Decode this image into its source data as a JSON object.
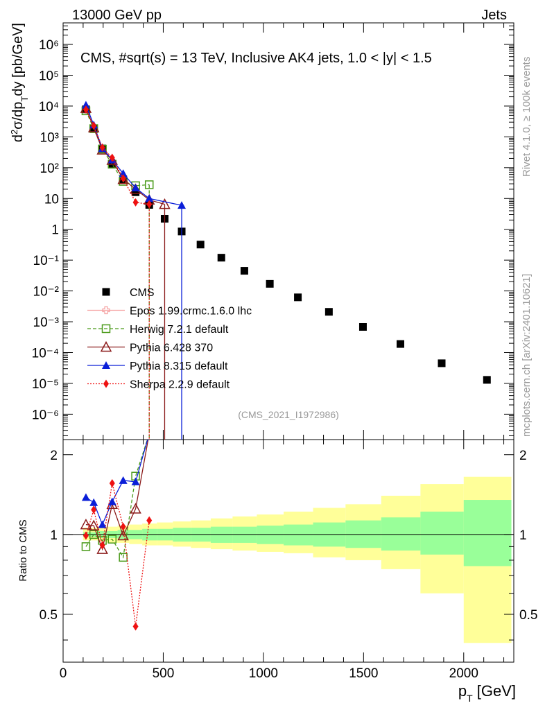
{
  "header": {
    "left": "13000 GeV pp",
    "right": "Jets"
  },
  "side_labels": {
    "rivet": "Rivet 4.1.0, ≥ 100k events",
    "mcplots": "mcplots.cern.ch [arXiv:2401.10621]"
  },
  "chart_data": [
    {
      "type": "scatter",
      "title": "CMS, #sqrt(s) = 13 TeV, Inclusive AK4 jets, 1.0 < |y| < 1.5",
      "analysis_id": "(CMS_2021_I1972986)",
      "ylabel": "d²σ/dp_T dy [pb/GeV]",
      "yscale": "log",
      "xlim": [
        0,
        2250
      ],
      "ylim": [
        1.5e-07,
        5000000.0
      ],
      "y_tick_labels": [
        "10⁻⁶",
        "10⁻⁵",
        "10⁻⁴",
        "10⁻³",
        "10⁻²",
        "10⁻¹",
        "1",
        "10",
        "10²",
        "10³",
        "10⁴",
        "10⁵",
        "10⁶"
      ],
      "y_tick_values": [
        1e-06,
        1e-05,
        0.0001,
        0.001,
        0.01,
        0.1,
        1,
        10,
        100,
        1000,
        10000.0,
        100000.0,
        1000000.0
      ],
      "legend_position": "bottom-left",
      "series": [
        {
          "name": "CMS",
          "color": "#000000",
          "marker": "square",
          "x": [
            114,
            153,
            196,
            245,
            300,
            362,
            430,
            507,
            592,
            686,
            790,
            905,
            1032,
            1172,
            1327,
            1497,
            1684,
            1890,
            2116
          ],
          "y": [
            7800,
            1850,
            420,
            135,
            42,
            16,
            6.2,
            2.2,
            0.85,
            0.32,
            0.12,
            0.045,
            0.017,
            0.0062,
            0.0021,
            0.00068,
            0.00019,
            4.5e-05,
            1.3e-05
          ]
        },
        {
          "name": "Epos 1.99.crmc.1.6.0 lhc",
          "color": "#f5a0a0",
          "marker": "cross-open",
          "x": [],
          "y": []
        },
        {
          "name": "Herwig 7.2.1 default",
          "color": "#4a9a1a",
          "marker": "square-open",
          "x": [
            114,
            153,
            196,
            245,
            300,
            362,
            430
          ],
          "y": [
            7000,
            1850,
            400,
            130,
            36,
            26,
            28
          ]
        },
        {
          "name": "Pythia 6.428 370",
          "color": "#8b1a1a",
          "marker": "triangle-open",
          "x": [
            114,
            153,
            196,
            245,
            300,
            362,
            430,
            507
          ],
          "y": [
            8500,
            2000,
            380,
            175,
            42,
            20,
            9,
            6.5
          ]
        },
        {
          "name": "Pythia 8.315 default",
          "color": "#0a1ed8",
          "marker": "triangle",
          "x": [
            114,
            153,
            196,
            245,
            300,
            362,
            430,
            592
          ],
          "y": [
            10800,
            2450,
            420,
            180,
            65,
            22,
            10,
            6
          ]
        },
        {
          "name": "Sherpa 2.2.9 default",
          "color": "#ee1111",
          "marker": "diamond",
          "x": [
            114,
            153,
            196,
            245,
            300,
            362,
            430
          ],
          "y": [
            7700,
            2300,
            450,
            210,
            45,
            7.5,
            6.5
          ]
        }
      ]
    },
    {
      "type": "line",
      "ylabel": "Ratio to CMS",
      "xlabel": "p_T [GeV]",
      "xlim": [
        0,
        2250
      ],
      "ylim": [
        0.33,
        2.28
      ],
      "x_tick_labels": [
        "0",
        "500",
        "1000",
        "1500",
        "2000"
      ],
      "x_tick_values": [
        0,
        500,
        1000,
        1500,
        2000
      ],
      "y_tick_labels": [
        "0.5",
        "1",
        "2"
      ],
      "y_tick_values": [
        0.5,
        1,
        2
      ],
      "bands": {
        "edges": [
          100,
          133,
          174,
          220,
          272,
          330,
          395,
          468,
          548,
          638,
          737,
          846,
          967,
          1101,
          1248,
          1410,
          1588,
          1784,
          2000,
          2238
        ],
        "stat_lo": [
          0.98,
          0.98,
          0.97,
          0.97,
          0.96,
          0.96,
          0.95,
          0.95,
          0.94,
          0.94,
          0.93,
          0.93,
          0.92,
          0.91,
          0.9,
          0.89,
          0.87,
          0.84,
          0.76
        ],
        "stat_hi": [
          1.02,
          1.02,
          1.03,
          1.03,
          1.04,
          1.04,
          1.05,
          1.05,
          1.06,
          1.06,
          1.07,
          1.07,
          1.08,
          1.09,
          1.11,
          1.13,
          1.16,
          1.22,
          1.35
        ],
        "tot_lo": [
          0.95,
          0.95,
          0.94,
          0.93,
          0.93,
          0.92,
          0.91,
          0.91,
          0.9,
          0.89,
          0.88,
          0.87,
          0.86,
          0.85,
          0.82,
          0.8,
          0.74,
          0.6,
          0.39
        ],
        "tot_hi": [
          1.06,
          1.06,
          1.07,
          1.07,
          1.08,
          1.09,
          1.1,
          1.11,
          1.12,
          1.13,
          1.15,
          1.17,
          1.19,
          1.22,
          1.26,
          1.3,
          1.4,
          1.55,
          1.65
        ]
      },
      "series": [
        {
          "name": "Herwig 7.2.1 default",
          "color": "#4a9a1a",
          "x": [
            114,
            153,
            196,
            245,
            300,
            362,
            430
          ],
          "y": [
            0.9,
            1.0,
            0.95,
            0.96,
            0.82,
            1.66,
            2.4
          ]
        },
        {
          "name": "Pythia 6.428 370",
          "color": "#8b1a1a",
          "x": [
            114,
            153,
            196,
            245,
            300,
            362,
            430
          ],
          "y": [
            1.09,
            1.08,
            0.88,
            1.3,
            0.99,
            1.25,
            2.4
          ]
        },
        {
          "name": "Pythia 8.315 default",
          "color": "#0a1ed8",
          "x": [
            114,
            153,
            196,
            245,
            300,
            362,
            430
          ],
          "y": [
            1.38,
            1.32,
            1.09,
            1.33,
            1.6,
            1.58,
            2.4
          ]
        },
        {
          "name": "Sherpa 2.2.9 default",
          "color": "#ee1111",
          "x": [
            114,
            153,
            196,
            245,
            300,
            362,
            430
          ],
          "y": [
            0.99,
            1.24,
            0.91,
            1.56,
            1.07,
            0.45,
            1.13
          ]
        }
      ]
    }
  ]
}
